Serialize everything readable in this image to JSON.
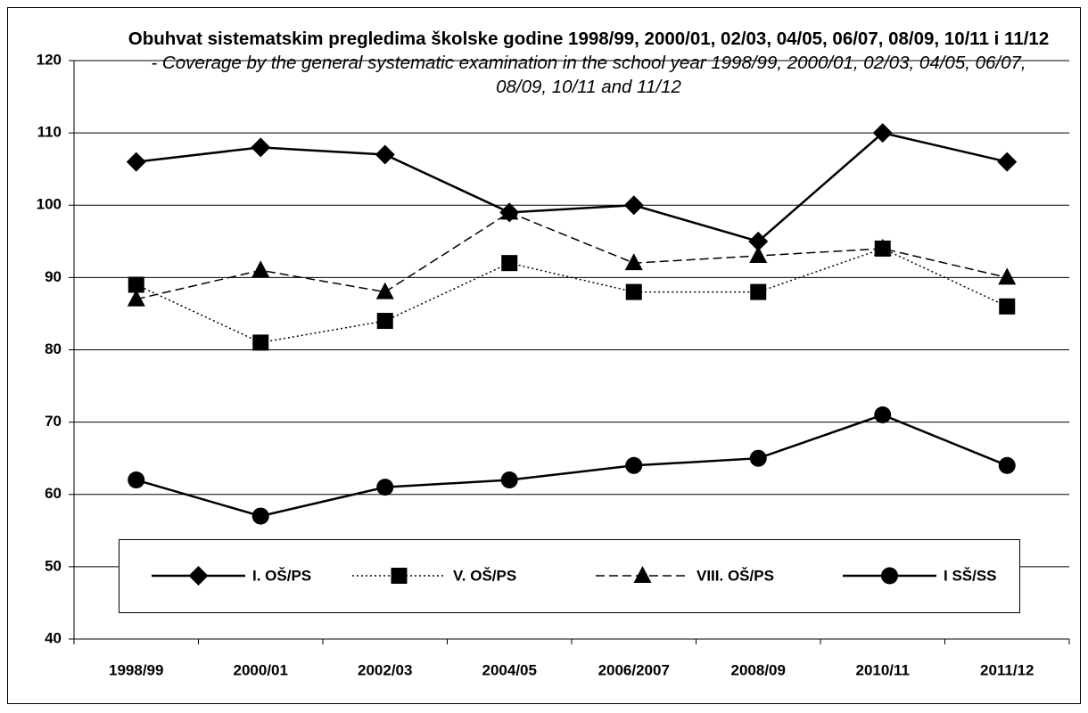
{
  "chart_data": {
    "type": "line",
    "title": "Obuhvat sistematskim pregledima školske godine 1998/99, 2000/01, 02/03, 04/05, 06/07, 08/09, 10/11 i 11/12",
    "subtitle": "- Coverage by the general systematic examination in the school year 1998/99, 2000/01, 02/03, 04/05, 06/07, 08/09, 10/11 and 11/12",
    "categories": [
      "1998/99",
      "2000/01",
      "2002/03",
      "2004/05",
      "2006/2007",
      "2008/09",
      "2010/11",
      "2011/12"
    ],
    "series": [
      {
        "name": "I. OŠ/PS",
        "color": "#000000",
        "dash": "solid",
        "marker": "diamond",
        "values": [
          106,
          108,
          107,
          99,
          100,
          95,
          110,
          106
        ]
      },
      {
        "name": "V. OŠ/PS",
        "color": "#000000",
        "dash": "dotted",
        "marker": "square",
        "values": [
          89,
          81,
          84,
          92,
          88,
          88,
          94,
          86
        ]
      },
      {
        "name": "VIII. OŠ/PS",
        "color": "#000000",
        "dash": "dashed",
        "marker": "triangle",
        "values": [
          87,
          91,
          88,
          99,
          92,
          93,
          94,
          90
        ]
      },
      {
        "name": "I SŠ/SS",
        "color": "#000000",
        "dash": "solid",
        "marker": "circle",
        "values": [
          62,
          57,
          61,
          62,
          64,
          65,
          71,
          64
        ]
      }
    ],
    "ylim": [
      40,
      120
    ],
    "yticks": [
      40,
      50,
      60,
      70,
      80,
      90,
      100,
      110,
      120
    ],
    "grid": true,
    "legend": "bottom"
  }
}
